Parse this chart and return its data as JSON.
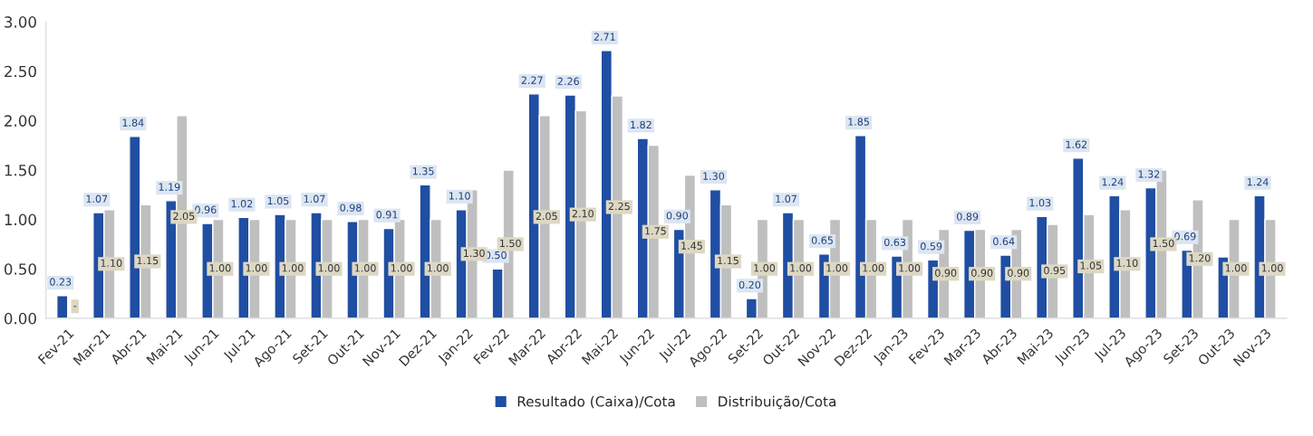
{
  "chart_data": {
    "type": "bar",
    "categories": [
      "Fev-21",
      "Mar-21",
      "Abr-21",
      "Mai-21",
      "Jun-21",
      "Jul-21",
      "Ago-21",
      "Set-21",
      "Out-21",
      "Nov-21",
      "Dez-21",
      "Jan-22",
      "Fev-22",
      "Mar-22",
      "Abr-22",
      "Mai-22",
      "Jun-22",
      "Jul-22",
      "Ago-22",
      "Set-22",
      "Out-22",
      "Nov-22",
      "Dez-22",
      "Jan-23",
      "Fev-23",
      "Mar-23",
      "Abr-23",
      "Mai-23",
      "Jun-23",
      "Jul-23",
      "Ago-23",
      "Set-23",
      "Out-23",
      "Nov-23"
    ],
    "series": [
      {
        "name": "Resultado (Caixa)/Cota",
        "color": "#1f4ea3",
        "values": [
          0.23,
          1.07,
          1.84,
          1.19,
          0.96,
          1.02,
          1.05,
          1.07,
          0.98,
          0.91,
          1.35,
          1.1,
          0.5,
          2.27,
          2.26,
          2.71,
          1.82,
          0.9,
          1.3,
          0.2,
          1.07,
          0.65,
          1.85,
          0.63,
          0.59,
          0.89,
          0.64,
          1.03,
          1.62,
          1.24,
          1.32,
          0.69,
          0.62,
          1.24
        ],
        "value_labels": [
          "0.23",
          "1.07",
          "1.84",
          "1.19",
          "0.96",
          "1.02",
          "1.05",
          "1.07",
          "0.98",
          "0.91",
          "1.35",
          "1.10",
          "0.50",
          "2.27",
          "2.26",
          "2.71",
          "1.82",
          "0.90",
          "1.30",
          "0.20",
          "1.07",
          "0.65",
          "1.85",
          "0.63",
          "0.59",
          "0.89",
          "0.64",
          "1.03",
          "1.62",
          "1.24",
          "1.32",
          "0.69",
          null,
          "1.24"
        ]
      },
      {
        "name": "Distribuição/Cota",
        "color": "#bfbfbf",
        "values": [
          null,
          1.1,
          1.15,
          2.05,
          1.0,
          1.0,
          1.0,
          1.0,
          1.0,
          1.0,
          1.0,
          1.3,
          1.5,
          2.05,
          2.1,
          2.25,
          1.75,
          1.45,
          1.15,
          1.0,
          1.0,
          1.0,
          1.0,
          1.0,
          0.9,
          0.9,
          0.9,
          0.95,
          1.05,
          1.1,
          1.5,
          1.2,
          1.0,
          1.0
        ],
        "value_labels": [
          "-",
          "1.10",
          "1.15",
          "2.05",
          "1.00",
          "1.00",
          "1.00",
          "1.00",
          "1.00",
          "1.00",
          "1.00",
          "1.30",
          "1.50",
          "2.05",
          "2.10",
          "2.25",
          "1.75",
          "1.45",
          "1.15",
          "1.00",
          "1.00",
          "1.00",
          "1.00",
          "1.00",
          "0.90",
          "0.90",
          "0.90",
          "0.95",
          "1.05",
          "1.10",
          "1.50",
          "1.20",
          "1.00",
          "1.00"
        ]
      }
    ],
    "ylim": [
      0,
      3
    ],
    "yticks": [
      {
        "value": 0,
        "label": "0.00"
      },
      {
        "value": 0.5,
        "label": "0.50"
      },
      {
        "value": 1,
        "label": "1.00"
      },
      {
        "value": 1.5,
        "label": "1.50"
      },
      {
        "value": 2,
        "label": "2.00"
      },
      {
        "value": 2.5,
        "label": "2.50"
      },
      {
        "value": 3,
        "label": "3.00"
      }
    ],
    "grid": false,
    "legend": "bottom"
  }
}
